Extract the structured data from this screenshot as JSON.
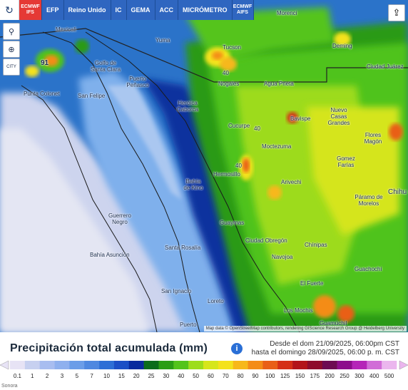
{
  "toolbar": {
    "refresh_icon": "refresh-icon",
    "tabs": [
      {
        "label": "ECMWF IFS",
        "active": true
      },
      {
        "label": "EFP",
        "active": false
      },
      {
        "label": "Reino Unido",
        "active": false
      },
      {
        "label": "IC",
        "active": false
      },
      {
        "label": "GEMA",
        "active": false
      },
      {
        "label": "ACC",
        "active": false
      },
      {
        "label": "MICRÓMETRO",
        "active": false
      },
      {
        "label": "ECMWF AIFS",
        "active": false
      }
    ]
  },
  "left_controls": {
    "location_icon": "location-pin-icon",
    "zoom_icon": "zoom-icon",
    "city_label": "CITY"
  },
  "share_icon": "share-icon",
  "places": {
    "mexicali": "Mexicali",
    "yuma": "Yuma",
    "tucson": "Tucson",
    "morenci": "Morenci",
    "deming": "Deming",
    "ciudad_juarez": "Ciudad Juárez",
    "nogales": "Nogales",
    "agua_prieta": "Agua Prieta",
    "golfo_santa_clara": "Golfo de Santa Clara",
    "puerto_penasco": "Puerto Peñasco",
    "punta_colonet": "Punta Colonet",
    "san_felipe": "San Felipe",
    "heroica_caborca": "Heroica Caborca",
    "cucurpe": "Cucurpe",
    "bavispe": "Bavispe",
    "nuevo_casas_grandes": "Nuevo Casas Grandes",
    "flores_magon": "Flores Magón",
    "moctezuma": "Moctezuma",
    "gomez_farias": "Gomez Farías",
    "hermosillo": "Hermosillo",
    "arivechi": "Arivechi",
    "bahia_kino": "Bahía de Kino",
    "parramo_morelos": "Páramo de Morelos",
    "chihuahua": "Chihu",
    "guerrero_negro": "Guerrero Negro",
    "guaymas": "Guaymas",
    "ciudad_obregon": "Ciudad Obregón",
    "chinipas": "Chínipas",
    "bahia_asuncion": "Bahía Asunción",
    "santa_rosalia": "Santa Rosalía",
    "navojoa": "Navojoa",
    "guachochi": "Guachochi",
    "el_fuerte": "El Fuerte",
    "san_ignacio": "San Ignacio",
    "loreto": "Loreto",
    "los_mochis": "Los Mochis",
    "guamuchil": "Guamúchil",
    "puerto": "Puerto"
  },
  "map_values": {
    "v91": "91",
    "v40a": "40",
    "v40b": "40",
    "v40c": "40"
  },
  "attribution": "Map data © OpenStreetMap contributors, rendering GIScience Research Group @ Heidelberg University",
  "title": "Precipitación total acumulada (mm)",
  "info_icon": "info-icon",
  "date_from": "Desde el dom 21/09/2025, 06:00pm CST",
  "date_to": "hasta el domingo 28/09/2025, 06:00 p. m. CST",
  "legend": {
    "values": [
      "0.1",
      "1",
      "2",
      "3",
      "5",
      "7",
      "10",
      "15",
      "20",
      "25",
      "30",
      "40",
      "50",
      "60",
      "70",
      "80",
      "90",
      "100",
      "125",
      "150",
      "175",
      "200",
      "250",
      "300",
      "400",
      "500"
    ],
    "colors": [
      "#e7e3f5",
      "#c7d0f0",
      "#a8bdf0",
      "#8fb0ee",
      "#6b9de8",
      "#4f88e0",
      "#2e6fd6",
      "#1c4fc6",
      "#08299e",
      "#0b6c1b",
      "#2a9d14",
      "#53c41a",
      "#9ddd1b",
      "#d6e61c",
      "#f4e21c",
      "#f7b81a",
      "#f48c18",
      "#e95f18",
      "#d52f16",
      "#b3141a",
      "#8e0c2c",
      "#6d0a52",
      "#8d0d8c",
      "#b524b8",
      "#d16cd7",
      "#ebb6ee"
    ]
  },
  "bottom_text": "Sonora"
}
